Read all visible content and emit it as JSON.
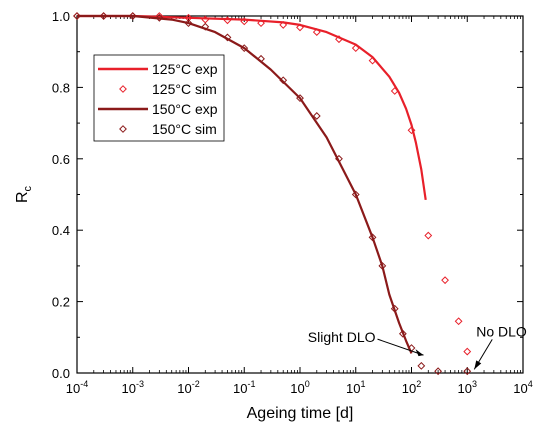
{
  "chart_data": {
    "type": "line",
    "title": "",
    "xlabel": "Ageing time [d]",
    "ylabel_main": "R",
    "ylabel_sub": "c",
    "x_scale": "log",
    "xlim": [
      0.0001,
      10000
    ],
    "ylim": [
      0.0,
      1.0
    ],
    "x_ticks": [
      {
        "value": 0.0001,
        "base": "10",
        "exp": "-4"
      },
      {
        "value": 0.001,
        "base": "10",
        "exp": "-3"
      },
      {
        "value": 0.01,
        "base": "10",
        "exp": "-2"
      },
      {
        "value": 0.1,
        "base": "10",
        "exp": "-1"
      },
      {
        "value": 1,
        "base": "10",
        "exp": "0"
      },
      {
        "value": 10,
        "base": "10",
        "exp": "1"
      },
      {
        "value": 100,
        "base": "10",
        "exp": "2"
      },
      {
        "value": 1000,
        "base": "10",
        "exp": "3"
      },
      {
        "value": 10000,
        "base": "10",
        "exp": "4"
      }
    ],
    "y_ticks": [
      {
        "value": 0.0,
        "label": "0.0"
      },
      {
        "value": 0.2,
        "label": "0.2"
      },
      {
        "value": 0.4,
        "label": "0.4"
      },
      {
        "value": 0.6,
        "label": "0.6"
      },
      {
        "value": 0.8,
        "label": "0.8"
      },
      {
        "value": 1.0,
        "label": "1.0"
      }
    ],
    "grid": false,
    "legend_position": "top-left",
    "series": [
      {
        "name": "125°C exp",
        "kind": "line",
        "color": "#e8202a",
        "x": [
          0.0001,
          0.001,
          0.01,
          0.1,
          0.5,
          1,
          3,
          10,
          20,
          40,
          60,
          80,
          100,
          120,
          150,
          180
        ],
        "y": [
          1.0,
          1.0,
          0.995,
          0.99,
          0.982,
          0.975,
          0.955,
          0.92,
          0.885,
          0.83,
          0.785,
          0.74,
          0.695,
          0.645,
          0.57,
          0.485
        ]
      },
      {
        "name": "125°C sim",
        "kind": "markers",
        "color": "#e8202a",
        "x": [
          0.0001,
          0.0003,
          0.001,
          0.003,
          0.01,
          0.02,
          0.05,
          0.1,
          0.2,
          0.5,
          1,
          2,
          5,
          10,
          20,
          50,
          100,
          200,
          400,
          700,
          1000
        ],
        "y": [
          1.0,
          1.0,
          1.0,
          1.0,
          0.995,
          0.99,
          0.988,
          0.985,
          0.98,
          0.975,
          0.968,
          0.955,
          0.935,
          0.91,
          0.875,
          0.79,
          0.68,
          0.385,
          0.26,
          0.145,
          0.06
        ]
      },
      {
        "name": "150°C exp",
        "kind": "line",
        "color": "#8b1a1a",
        "x": [
          0.0001,
          0.001,
          0.005,
          0.01,
          0.03,
          0.1,
          0.3,
          1,
          3,
          10,
          20,
          30,
          40,
          60,
          80,
          100
        ],
        "y": [
          1.0,
          1.0,
          0.99,
          0.98,
          0.955,
          0.91,
          0.85,
          0.77,
          0.66,
          0.5,
          0.38,
          0.3,
          0.22,
          0.14,
          0.09,
          0.055
        ]
      },
      {
        "name": "150°C sim",
        "kind": "markers",
        "color": "#8b1a1a",
        "x": [
          0.0001,
          0.0003,
          0.001,
          0.003,
          0.01,
          0.02,
          0.05,
          0.1,
          0.2,
          0.5,
          1,
          2,
          5,
          10,
          20,
          30,
          50,
          70,
          100,
          150,
          300,
          1000
        ],
        "y": [
          1.0,
          1.0,
          1.0,
          0.995,
          0.98,
          0.97,
          0.94,
          0.91,
          0.88,
          0.82,
          0.77,
          0.72,
          0.6,
          0.5,
          0.38,
          0.3,
          0.18,
          0.11,
          0.07,
          0.02,
          0.005,
          0.005
        ]
      }
    ],
    "annotations": [
      {
        "text": "Slight DLO",
        "x": 100,
        "y": 0.05
      },
      {
        "text": "No DLO",
        "x": 1000,
        "y": 0.01
      }
    ]
  }
}
